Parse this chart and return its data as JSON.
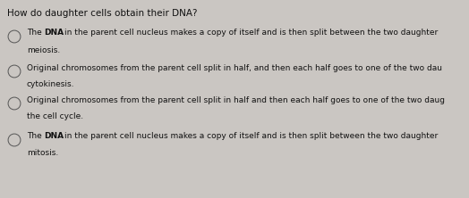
{
  "bg_color": "#cac6c2",
  "title": "How do daughter cells obtain their DNA?",
  "options": [
    {
      "line1_pre": "The ",
      "line1_bold": "DNA",
      "line1_post": "in the parent cell nucleus makes a copy of itself and is then split between the two daughter",
      "line2": "meiosis."
    },
    {
      "line1_pre": "Original chromosomes from the parent cell split in half, and then each half goes to one of the two dau",
      "line1_bold": "",
      "line1_post": "",
      "line2": "cytokinesis."
    },
    {
      "line1_pre": "Original chromosomes from the parent cell split in half and then each half goes to one of the two daug",
      "line1_bold": "",
      "line1_post": "",
      "line2": "the cell cycle."
    },
    {
      "line1_pre": "The ",
      "line1_bold": "DNA",
      "line1_post": "in the parent cell nucleus makes a copy of itself and is then split between the two daughter",
      "line2": "mitosis."
    }
  ],
  "text_color": "#111111",
  "radio_color": "#555555",
  "title_fontsize": 7.5,
  "body_fontsize": 6.5,
  "label_fontsize": 6.5,
  "fig_width": 5.24,
  "fig_height": 2.22,
  "dpi": 100
}
